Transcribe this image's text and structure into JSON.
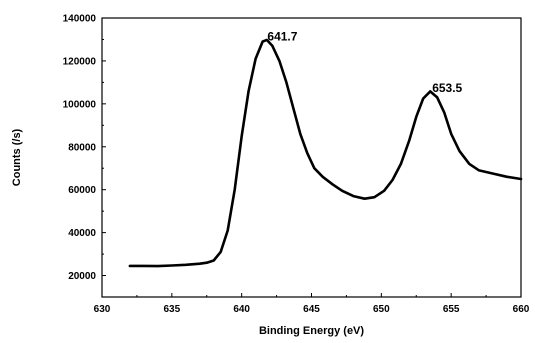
{
  "chart_data": {
    "type": "line",
    "title": "",
    "xlabel": "Binding Energy (eV)",
    "ylabel": "Counts (/s)",
    "xlim": [
      630,
      660
    ],
    "ylim": [
      10000,
      140000
    ],
    "x_ticks": [
      "630",
      "635",
      "640",
      "645",
      "650",
      "655",
      "660"
    ],
    "y_ticks": [
      "20000",
      "40000",
      "60000",
      "80000",
      "100000",
      "120000",
      "140000"
    ],
    "grid": false,
    "legend": "none",
    "line_color": "#000000",
    "annotations": [
      {
        "text": "641.7",
        "x": 641.7,
        "y": 130000
      },
      {
        "text": "653.5",
        "x": 653.5,
        "y": 106000
      }
    ],
    "series": [
      {
        "x": [
          632,
          633,
          634,
          635,
          636,
          637,
          637.5,
          638,
          638.5,
          639,
          639.5,
          640,
          640.5,
          641,
          641.5,
          641.8,
          642.2,
          642.7,
          643.2,
          643.7,
          644.2,
          644.7,
          645.2,
          645.8,
          646.5,
          647.2,
          648,
          648.8,
          649.5,
          650.2,
          650.8,
          651.4,
          652,
          652.5,
          653,
          653.5,
          654,
          654.5,
          655,
          655.6,
          656.3,
          657,
          658,
          659,
          660
        ],
        "y": [
          24500,
          24500,
          24400,
          24700,
          25000,
          25500,
          26000,
          27000,
          31000,
          41000,
          60000,
          85000,
          106000,
          121000,
          129000,
          129800,
          127000,
          120000,
          110000,
          98000,
          86000,
          77000,
          70000,
          66000,
          62500,
          59500,
          57000,
          55800,
          56500,
          59500,
          64500,
          72000,
          83000,
          94000,
          102500,
          105800,
          103000,
          96000,
          86000,
          78000,
          72000,
          69000,
          67500,
          66000,
          65000
        ]
      }
    ]
  }
}
